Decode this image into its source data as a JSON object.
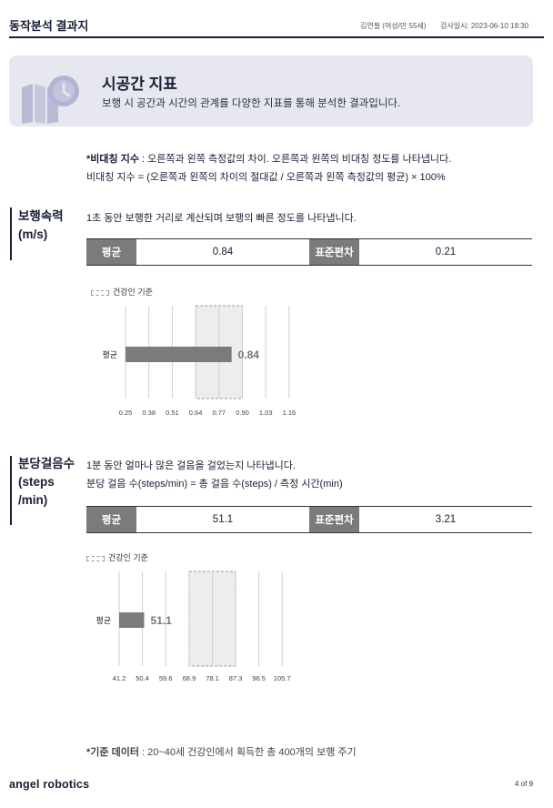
{
  "header": {
    "title": "동작분석 결과지",
    "patient": "김연필 (여성/만 55세)",
    "exam_date": "검사일시: 2023-06-10 18:30"
  },
  "banner": {
    "icon": "calendar-clock-icon",
    "title": "시공간 지표",
    "description": "보행 시 공간과 시간의 관계를 다양한 지표를 통해 분석한 결과입니다."
  },
  "asymmetry_note": {
    "label": "*비대칭 지수",
    "text": " : 오른쪽과 왼쪽 측정값의 차이. 오른쪽과 왼쪽의 비대칭 정도를 나타냅니다.",
    "formula": "비대칭 지수 = (오른쪽과 왼쪽의 차이의 절대값 / 오른쪽과 왼쪽 측정값의 평균) × 100%"
  },
  "sections": [
    {
      "title_line1": "보행속력",
      "title_line2": "(m/s)",
      "title_line3": "",
      "desc": "1초 동안 보행한 거리로 계산되며 보행의 빠른 정도를 나타냅니다.",
      "formula": "",
      "mean_label": "평균",
      "mean_value": "0.84",
      "sd_label": "표준편차",
      "sd_value": "0.21",
      "legend": "건강인 기준"
    },
    {
      "title_line1": "분당걸음수",
      "title_line2": "(steps",
      "title_line3": "/min)",
      "desc": "1분 동안 얼마나 많은 걸음을 걸었는지 나타냅니다.",
      "formula": "분당 걸음 수(steps/min) = 총 걸음 수(steps) / 측정 시간(min)",
      "mean_label": "평균",
      "mean_value": "51.1",
      "sd_label": "표준편차",
      "sd_value": "3.21",
      "legend": "건강인 기준"
    }
  ],
  "chart_data": [
    {
      "type": "bar",
      "orientation": "horizontal",
      "categories": [
        "평균"
      ],
      "values": [
        0.84
      ],
      "value_labels": [
        "0.84"
      ],
      "ticks": [
        0.25,
        0.38,
        0.51,
        0.64,
        0.77,
        0.9,
        1.03,
        1.16
      ],
      "tick_labels": [
        "0.25",
        "0.38",
        "0.51",
        "0.64",
        "0.77",
        "0.90",
        "1.03",
        "1.16"
      ],
      "xlim": [
        0.25,
        1.16
      ],
      "reference_band": [
        0.64,
        0.9
      ],
      "reference_label": "건강인 기준",
      "bar_color": "#7b7b7b",
      "band_color": "#ededed"
    },
    {
      "type": "bar",
      "orientation": "horizontal",
      "categories": [
        "평균"
      ],
      "values": [
        51.1
      ],
      "value_labels": [
        "51.1"
      ],
      "ticks": [
        41.2,
        50.4,
        59.6,
        68.9,
        78.1,
        87.3,
        96.5,
        105.7
      ],
      "tick_labels": [
        "41.2",
        "50.4",
        "59.6",
        "68.9",
        "78.1",
        "87.3",
        "96.5",
        "105.7"
      ],
      "xlim": [
        41.2,
        105.7
      ],
      "reference_band": [
        68.9,
        87.3
      ],
      "reference_label": "건강인 기준",
      "bar_color": "#7b7b7b",
      "band_color": "#ededed"
    }
  ],
  "footer": {
    "note_label": "*기준 데이터",
    "note_text": " : 20~40세 건강인에서 획득한 총 400개의 보행 주기",
    "logo": "angel robotics",
    "page": "4 of 9"
  }
}
